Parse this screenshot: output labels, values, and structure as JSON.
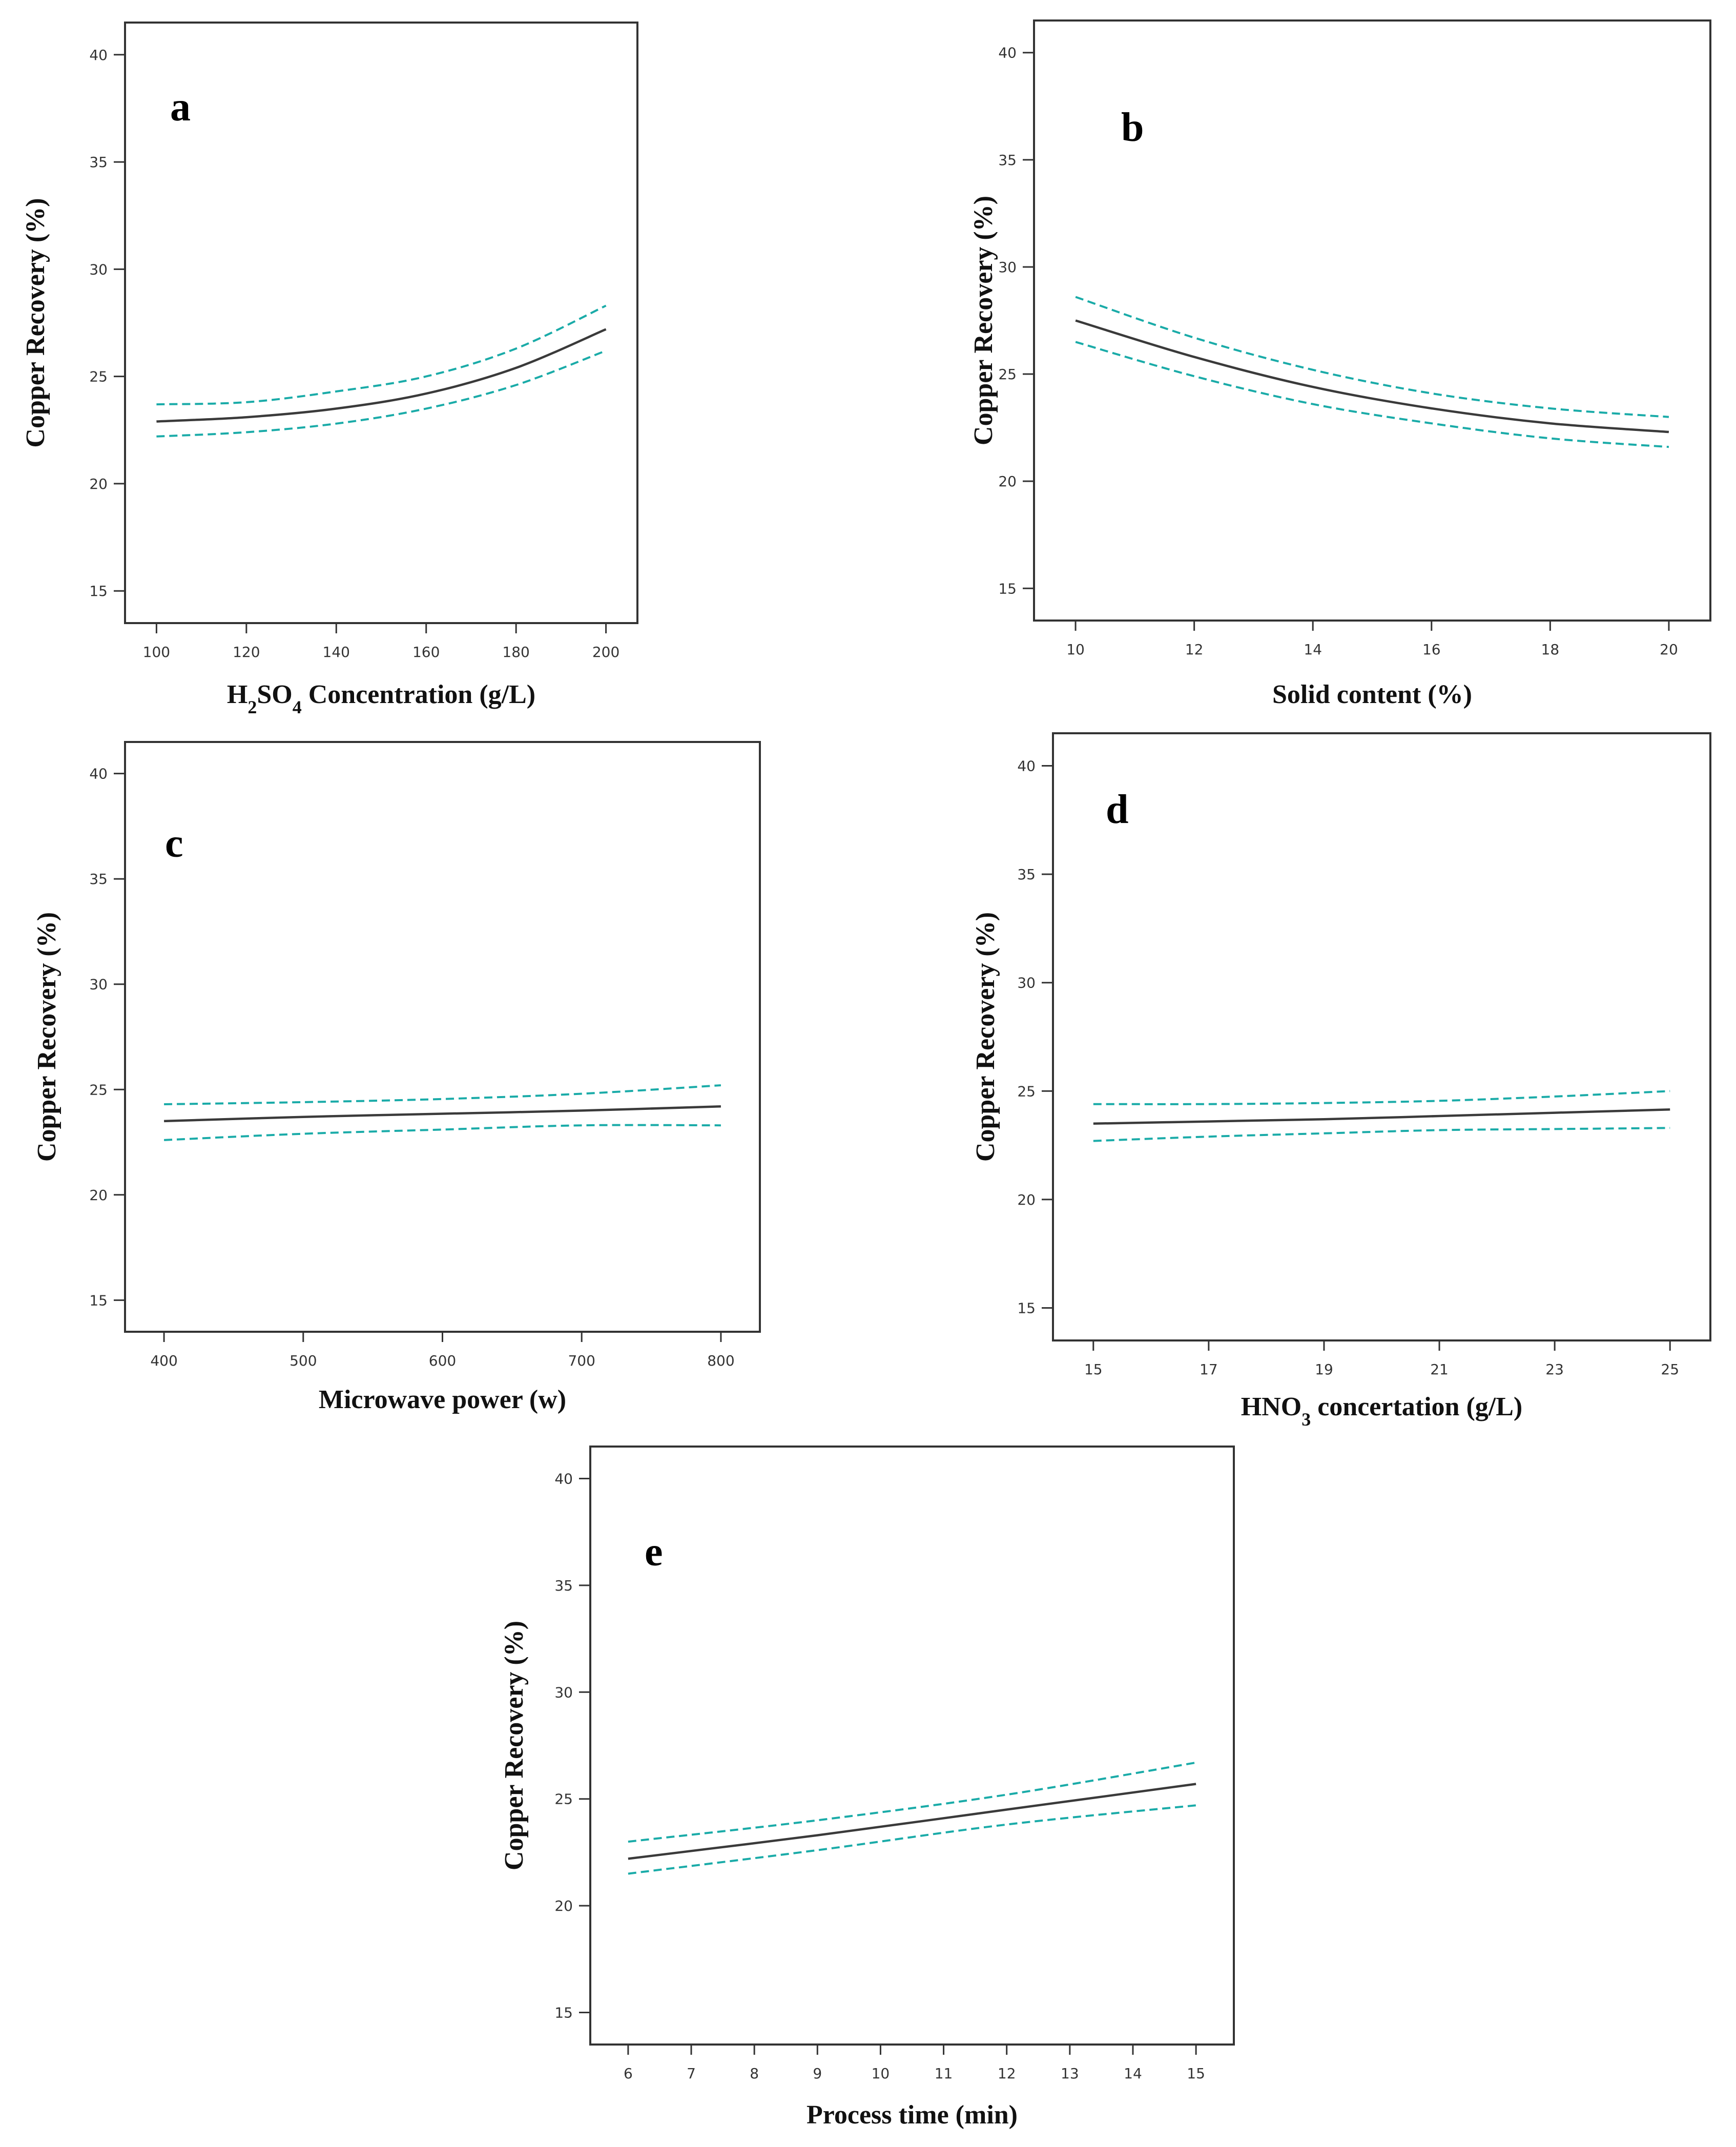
{
  "colors": {
    "fit": "#3a3a3a",
    "ci": "#1aaba8",
    "frame": "#333333"
  },
  "chart_data": [
    {
      "type": "line",
      "panel": "a",
      "xlabel_parts": [
        [
          "H",
          ""
        ],
        [
          "2",
          "sub"
        ],
        [
          "SO",
          ""
        ],
        [
          "4",
          "sub"
        ],
        [
          " Concentration (g/L)",
          ""
        ]
      ],
      "ylabel": "Copper Recovery (%)",
      "xlim": [
        93,
        207
      ],
      "ylim": [
        13.5,
        41.5
      ],
      "xticks": [
        100,
        120,
        140,
        160,
        180,
        200
      ],
      "yticks": [
        15,
        20,
        25,
        30,
        35,
        40
      ],
      "series": [
        {
          "name": "predicted",
          "style": "solid",
          "x": [
            100,
            120,
            140,
            160,
            180,
            200
          ],
          "y": [
            22.9,
            23.1,
            23.5,
            24.2,
            25.4,
            27.2
          ]
        },
        {
          "name": "upper CI",
          "style": "dashed",
          "x": [
            100,
            120,
            140,
            160,
            180,
            200
          ],
          "y": [
            23.7,
            23.8,
            24.3,
            25.0,
            26.3,
            28.3
          ]
        },
        {
          "name": "lower CI",
          "style": "dashed",
          "x": [
            100,
            120,
            140,
            160,
            180,
            200
          ],
          "y": [
            22.2,
            22.4,
            22.8,
            23.5,
            24.6,
            26.2
          ]
        }
      ]
    },
    {
      "type": "line",
      "panel": "b",
      "xlabel_parts": [
        [
          "Solid content (%)",
          ""
        ]
      ],
      "ylabel": "Copper Recovery (%)",
      "xlim": [
        9.3,
        20.7
      ],
      "ylim": [
        13.5,
        41.5
      ],
      "xticks": [
        10,
        12,
        14,
        16,
        18,
        20
      ],
      "yticks": [
        15,
        20,
        25,
        30,
        35,
        40
      ],
      "series": [
        {
          "name": "predicted",
          "style": "solid",
          "x": [
            10,
            12,
            14,
            16,
            18,
            20
          ],
          "y": [
            27.5,
            25.8,
            24.4,
            23.4,
            22.7,
            22.3
          ]
        },
        {
          "name": "upper CI",
          "style": "dashed",
          "x": [
            10,
            12,
            14,
            16,
            18,
            20
          ],
          "y": [
            28.6,
            26.7,
            25.2,
            24.1,
            23.4,
            23.0
          ]
        },
        {
          "name": "lower CI",
          "style": "dashed",
          "x": [
            10,
            12,
            14,
            16,
            18,
            20
          ],
          "y": [
            26.5,
            24.9,
            23.6,
            22.7,
            22.0,
            21.6
          ]
        }
      ]
    },
    {
      "type": "line",
      "panel": "c",
      "xlabel_parts": [
        [
          "Microwave power (w)",
          ""
        ]
      ],
      "ylabel": "Copper Recovery (%)",
      "xlim": [
        372,
        828
      ],
      "ylim": [
        13.5,
        41.5
      ],
      "xticks": [
        400,
        500,
        600,
        700,
        800
      ],
      "yticks": [
        15,
        20,
        25,
        30,
        35,
        40
      ],
      "series": [
        {
          "name": "predicted",
          "style": "solid",
          "x": [
            400,
            500,
            600,
            700,
            800
          ],
          "y": [
            23.5,
            23.7,
            23.85,
            24.0,
            24.2
          ]
        },
        {
          "name": "upper CI",
          "style": "dashed",
          "x": [
            400,
            500,
            600,
            700,
            800
          ],
          "y": [
            24.3,
            24.4,
            24.55,
            24.8,
            25.2
          ]
        },
        {
          "name": "lower CI",
          "style": "dashed",
          "x": [
            400,
            500,
            600,
            700,
            800
          ],
          "y": [
            22.6,
            22.9,
            23.1,
            23.3,
            23.3
          ]
        }
      ]
    },
    {
      "type": "line",
      "panel": "d",
      "xlabel_parts": [
        [
          "HNO",
          ""
        ],
        [
          "3",
          "sub"
        ],
        [
          " concertation (g/L)",
          ""
        ]
      ],
      "ylabel": "Copper Recovery (%)",
      "xlim": [
        14.3,
        25.7
      ],
      "ylim": [
        13.5,
        41.5
      ],
      "xticks": [
        15,
        17,
        19,
        21,
        23,
        25
      ],
      "yticks": [
        15,
        20,
        25,
        30,
        35,
        40
      ],
      "series": [
        {
          "name": "predicted",
          "style": "solid",
          "x": [
            15,
            17,
            19,
            21,
            23,
            25
          ],
          "y": [
            23.5,
            23.6,
            23.7,
            23.85,
            24.0,
            24.15
          ]
        },
        {
          "name": "upper CI",
          "style": "dashed",
          "x": [
            15,
            17,
            19,
            21,
            23,
            25
          ],
          "y": [
            24.4,
            24.4,
            24.45,
            24.55,
            24.75,
            25.0
          ]
        },
        {
          "name": "lower CI",
          "style": "dashed",
          "x": [
            15,
            17,
            19,
            21,
            23,
            25
          ],
          "y": [
            22.7,
            22.9,
            23.05,
            23.2,
            23.25,
            23.3
          ]
        }
      ]
    },
    {
      "type": "line",
      "panel": "e",
      "xlabel_parts": [
        [
          "Process time (min)",
          ""
        ]
      ],
      "ylabel": "Copper Recovery (%)",
      "xlim": [
        5.4,
        15.6
      ],
      "ylim": [
        13.5,
        41.5
      ],
      "xticks": [
        6,
        7,
        8,
        9,
        10,
        11,
        12,
        13,
        14,
        15
      ],
      "yticks": [
        15,
        20,
        25,
        30,
        35,
        40
      ],
      "series": [
        {
          "name": "predicted",
          "style": "solid",
          "x": [
            6,
            9,
            12,
            15
          ],
          "y": [
            22.2,
            23.3,
            24.5,
            25.7
          ]
        },
        {
          "name": "upper CI",
          "style": "dashed",
          "x": [
            6,
            9,
            12,
            15
          ],
          "y": [
            23.0,
            24.0,
            25.2,
            26.7
          ]
        },
        {
          "name": "lower CI",
          "style": "dashed",
          "x": [
            6,
            9,
            12,
            15
          ],
          "y": [
            21.5,
            22.6,
            23.8,
            24.7
          ]
        }
      ]
    }
  ]
}
